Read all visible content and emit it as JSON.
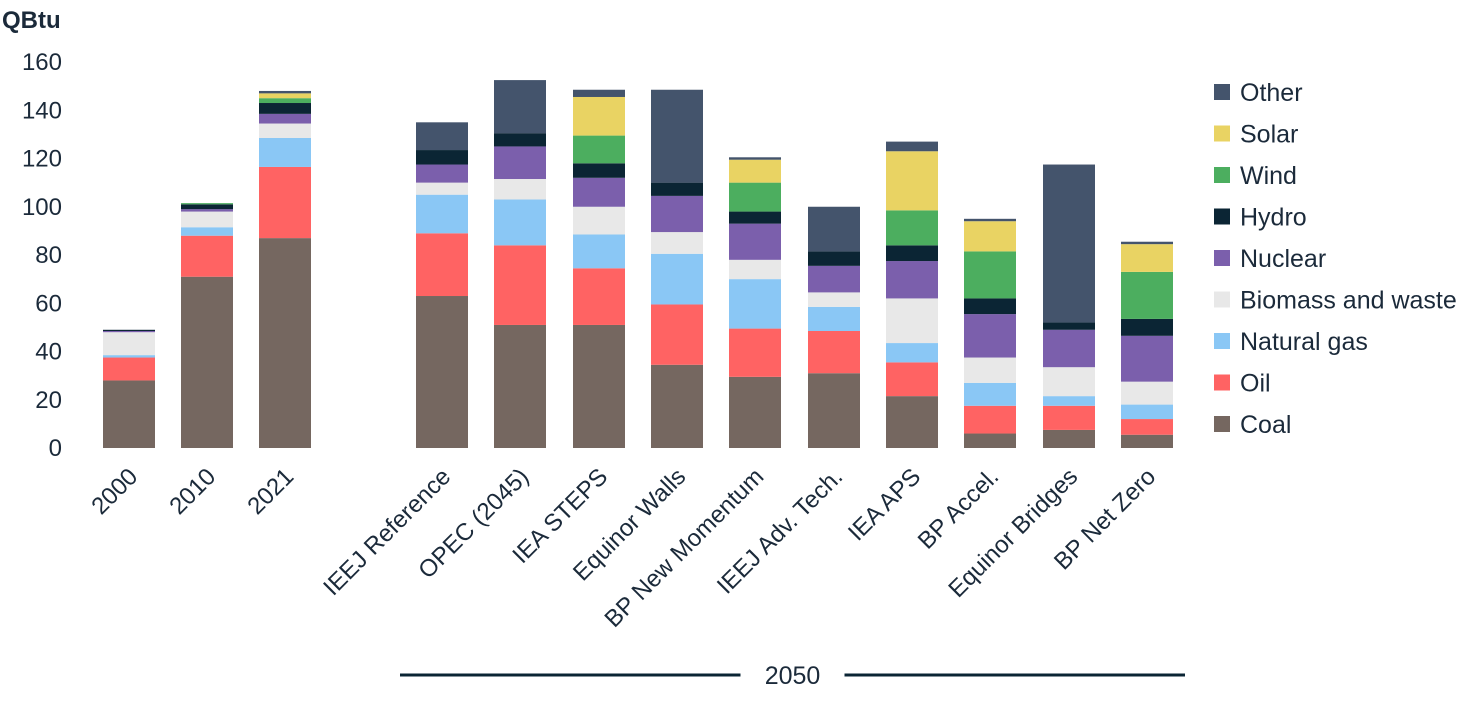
{
  "chart_data": {
    "type": "bar",
    "stacked": true,
    "title": "",
    "ylabel": "QBtu",
    "xlabel": "",
    "ylim": [
      0,
      160
    ],
    "yticks": [
      0,
      20,
      40,
      60,
      80,
      100,
      120,
      140,
      160
    ],
    "grid": false,
    "legend_position": "right",
    "categories": [
      "2000",
      "2010",
      "2021",
      "IEEJ Reference",
      "OPEC (2045)",
      "IEA STEPS",
      "Equinor Walls",
      "BP New Momentum",
      "IEEJ Adv. Tech.",
      "IEA APS",
      "BP Accel.",
      "Equinor Bridges",
      "BP Net Zero"
    ],
    "group_label": {
      "text": "2050",
      "from_category": 3,
      "to_category": 12
    },
    "series": [
      {
        "name": "Coal",
        "color": "#756760",
        "values": [
          28,
          71,
          87,
          63,
          51,
          51,
          34.5,
          29.5,
          31,
          21.5,
          6,
          7.5,
          5.5
        ]
      },
      {
        "name": "Oil",
        "color": "#ff6363",
        "values": [
          9.5,
          17,
          29.5,
          26,
          33,
          23.5,
          25,
          20,
          17.5,
          14,
          11.5,
          10,
          6.5
        ]
      },
      {
        "name": "Natural gas",
        "color": "#8ac7f5",
        "values": [
          1,
          3.5,
          12,
          16,
          19,
          14,
          21,
          20.5,
          10,
          8,
          9.5,
          4,
          6
        ]
      },
      {
        "name": "Biomass and waste",
        "color": "#e8e8e8",
        "values": [
          9.5,
          6.5,
          6,
          5,
          8.5,
          11.5,
          9,
          8,
          6,
          18.5,
          10.5,
          12,
          9.5
        ]
      },
      {
        "name": "Nuclear",
        "color": "#7b5fac",
        "values": [
          0.5,
          1,
          4,
          7.5,
          13.5,
          12,
          15,
          15,
          11,
          15.5,
          18,
          15.5,
          19
        ]
      },
      {
        "name": "Hydro",
        "color": "#0b2534",
        "values": [
          0.5,
          2,
          4.5,
          6,
          5.5,
          6,
          5.5,
          5,
          6,
          6.5,
          6.5,
          3,
          7
        ]
      },
      {
        "name": "Wind",
        "color": "#4cae5f",
        "values": [
          0,
          0.5,
          2,
          0,
          0,
          11.5,
          0,
          12,
          0,
          14.5,
          19.5,
          0,
          19.5
        ]
      },
      {
        "name": "Solar",
        "color": "#e9d363",
        "values": [
          0,
          0,
          2,
          0,
          0,
          16,
          0,
          9.5,
          0,
          24.5,
          12.5,
          0,
          11.5
        ]
      },
      {
        "name": "Other",
        "color": "#44546c",
        "values": [
          0,
          0,
          1,
          11.5,
          22,
          3,
          38.5,
          1,
          18.5,
          4,
          1,
          65.5,
          1
        ]
      }
    ],
    "legend_order": [
      "Other",
      "Solar",
      "Wind",
      "Hydro",
      "Nuclear",
      "Biomass and waste",
      "Natural gas",
      "Oil",
      "Coal"
    ]
  }
}
